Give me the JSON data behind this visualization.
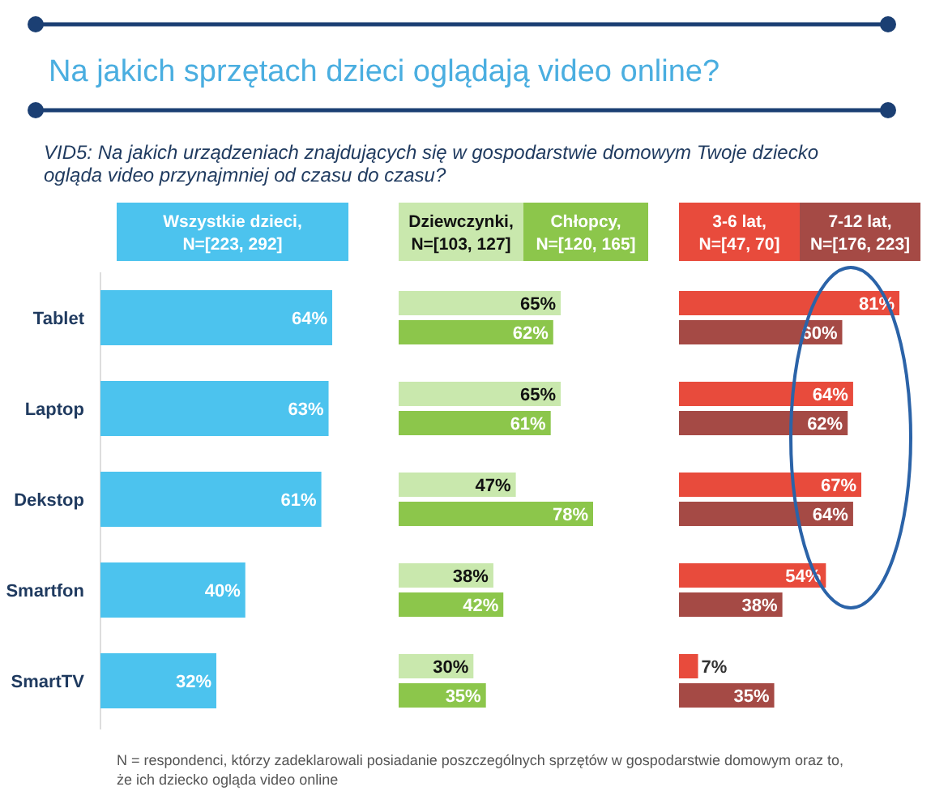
{
  "chart_data": [
    {
      "type": "bar",
      "orientation": "horizontal",
      "title": "Na jakich sprzętach dzieci oglądają video online?",
      "subtitle": "VID5: Na jakich urządzeniach znajdujących się w gospodarstwie domowym Twoje dziecko\nogląda video przynajmniej od czasu do czasu?",
      "categories": [
        "Tablet",
        "Laptop",
        "Dekstop",
        "Smartfon",
        "SmartTV"
      ],
      "series": [
        {
          "name": "Wszystkie dzieci,\nN=[223, 292]",
          "color": "#4cc3ee",
          "values": [
            64,
            63,
            61,
            40,
            32
          ],
          "value_labels": [
            "64%",
            "63%",
            "61%",
            "40%",
            "32%"
          ]
        }
      ],
      "legend": "top",
      "tick_labels": "y",
      "annotations": [
        "N = respondenci, którzy zadeklarowali posiadanie poszczególnych sprzętów w gospodarstwie domowym oraz to,\nże ich dziecko ogląda video online"
      ]
    },
    {
      "type": "bar",
      "orientation": "horizontal",
      "categories": [
        null,
        null,
        null,
        null,
        null
      ],
      "series": [
        {
          "name": "Dziewczynki,\nN=[103, 127]",
          "color": "#c9e8ad",
          "values": [
            65,
            65,
            47,
            38,
            30
          ],
          "value_labels": [
            "65%",
            "65%",
            "47%",
            "38%",
            "30%"
          ]
        },
        {
          "name": "Chłopcy,\nN=[120, 165]",
          "color": "#8cc64b",
          "values": [
            62,
            61,
            78,
            42,
            35
          ],
          "value_labels": [
            "62%",
            "61%",
            "78%",
            "42%",
            "35%"
          ]
        }
      ],
      "legend": "top",
      "tick_labels": false
    },
    {
      "type": "bar",
      "orientation": "horizontal",
      "categories": [
        null,
        null,
        null,
        null,
        null
      ],
      "series": [
        {
          "name": "3-6 lat,\nN=[47, 70]",
          "color": "#e84b3c",
          "values": [
            81,
            64,
            67,
            54,
            7
          ],
          "value_labels": [
            "81%",
            "64%",
            "67%",
            "54%",
            "7%"
          ]
        },
        {
          "name": "7-12 lat,\nN=[176, 223]",
          "color": "#a54a45",
          "values": [
            60,
            62,
            64,
            38,
            35
          ],
          "value_labels": [
            "60%",
            "62%",
            "64%",
            "38%",
            "35%"
          ]
        }
      ],
      "legend": "top",
      "tick_labels": false
    }
  ]
}
